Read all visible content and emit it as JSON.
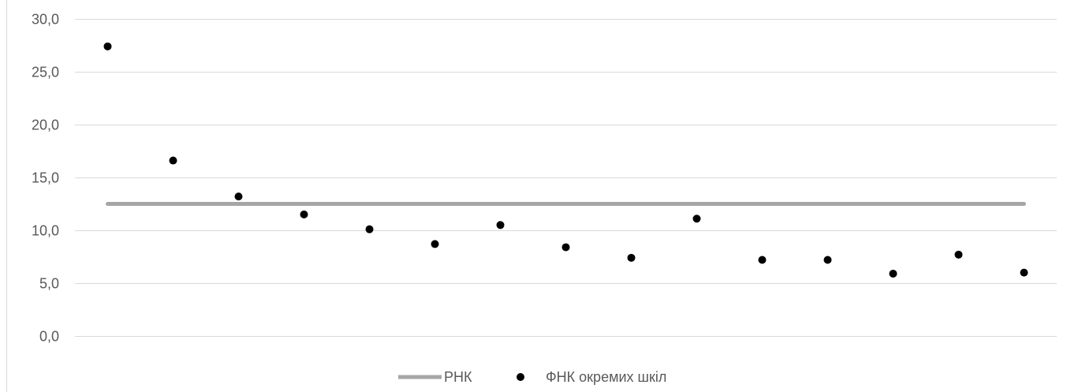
{
  "chart_data": {
    "type": "scatter",
    "title": "",
    "xlabel": "",
    "ylabel": "",
    "ylim": [
      0,
      30
    ],
    "yticks": [
      "0,0",
      "5,0",
      "10,0",
      "15,0",
      "20,0",
      "25,0",
      "30,0"
    ],
    "ytick_values": [
      0,
      5,
      10,
      15,
      20,
      25,
      30
    ],
    "grid": "horizontal",
    "legend_position": "bottom",
    "x": [
      1,
      2,
      3,
      4,
      5,
      6,
      7,
      8,
      9,
      10,
      11,
      12,
      13,
      14,
      15
    ],
    "series": [
      {
        "name": "РНК",
        "kind": "line",
        "color": "#a6a6a6",
        "values": [
          12.5,
          12.5,
          12.5,
          12.5,
          12.5,
          12.5,
          12.5,
          12.5,
          12.5,
          12.5,
          12.5,
          12.5,
          12.5,
          12.5,
          12.5
        ]
      },
      {
        "name": "ФНК окремих шкіл",
        "kind": "scatter",
        "color": "#000000",
        "values": [
          27.4,
          16.6,
          13.2,
          11.5,
          10.1,
          8.7,
          10.5,
          8.4,
          7.4,
          11.1,
          7.2,
          7.2,
          5.9,
          7.7,
          6.0
        ]
      }
    ]
  }
}
